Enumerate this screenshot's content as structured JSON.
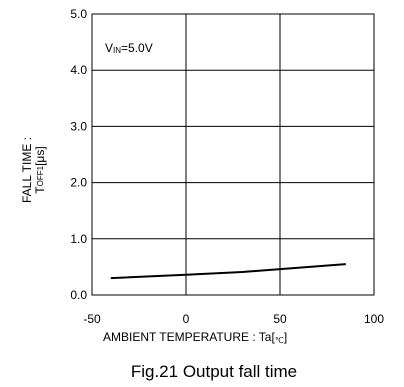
{
  "chart_data": {
    "type": "line",
    "title": "",
    "caption": "Fig.21 Output fall time",
    "xlabel": {
      "main": "AMBIENT TEMPERATURE : Ta[",
      "unit": "℃",
      "close": "]"
    },
    "ylabel": {
      "line1": "FALL TIME :",
      "sym": "T",
      "sub": "OFF1",
      "unit": "[μs]"
    },
    "annotation": {
      "sym": "V",
      "sub": "IN",
      "rest": "=5.0V"
    },
    "xlim": [
      -50,
      100
    ],
    "ylim": [
      0,
      5
    ],
    "xticks": [
      "-50",
      "0",
      "50",
      "100"
    ],
    "yticks": [
      "0.0",
      "1.0",
      "2.0",
      "3.0",
      "4.0",
      "5.0"
    ],
    "grid": true,
    "series": [
      {
        "x": [
          -40,
          0,
          30,
          85
        ],
        "y": [
          0.3,
          0.36,
          0.41,
          0.55
        ]
      }
    ]
  },
  "colors": {
    "line": "#000000",
    "grid": "#000000",
    "frame": "#000000"
  }
}
